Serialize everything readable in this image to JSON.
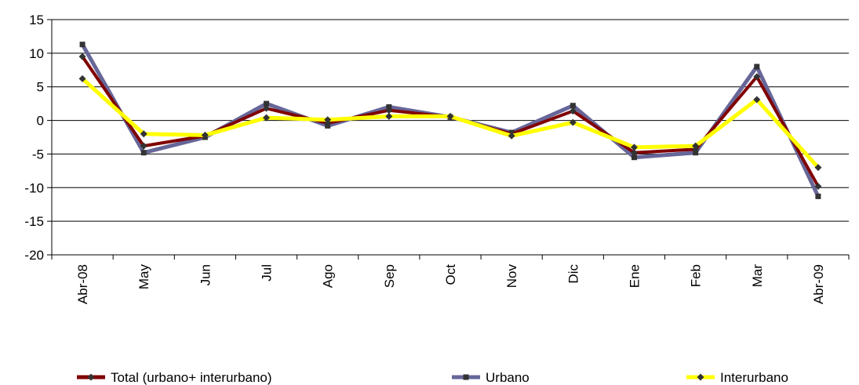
{
  "chart_data": {
    "type": "line",
    "title": "",
    "xlabel": "",
    "ylabel": "",
    "categories": [
      "Abr-08",
      "May",
      "Jun",
      "Jul",
      "Ago",
      "Sep",
      "Oct",
      "Nov",
      "Dic",
      "Ene",
      "Feb",
      "Mar",
      "Abr-09"
    ],
    "ylim": [
      -20,
      15
    ],
    "yticks": [
      15,
      10,
      5,
      0,
      -5,
      -10,
      -15,
      -20
    ],
    "grid": true,
    "legend_position": "bottom",
    "series": [
      {
        "name": "Urbano",
        "color": "#666699",
        "marker": "square",
        "values": [
          11.3,
          -4.8,
          -2.5,
          2.5,
          -0.8,
          2.0,
          0.5,
          -1.8,
          2.2,
          -5.5,
          -4.8,
          8.0,
          -11.3
        ]
      },
      {
        "name": "Total (urbano+ interurbano)",
        "color": "#800000",
        "marker": "diamond",
        "values": [
          9.5,
          -3.8,
          -2.3,
          1.8,
          -0.4,
          1.5,
          0.5,
          -2.0,
          1.4,
          -4.8,
          -4.3,
          6.5,
          -9.8
        ]
      },
      {
        "name": "Interurbano",
        "color": "#FFFF00",
        "marker": "diamond",
        "values": [
          6.2,
          -2.0,
          -2.2,
          0.4,
          0.1,
          0.6,
          0.6,
          -2.3,
          -0.3,
          -4.0,
          -3.8,
          3.1,
          -7.0
        ]
      }
    ],
    "legend": [
      {
        "name": "Total (urbano+ interurbano)",
        "color": "#800000",
        "marker": "diamond"
      },
      {
        "name": "Urbano",
        "color": "#666699",
        "marker": "square"
      },
      {
        "name": "Interurbano",
        "color": "#FFFF00",
        "marker": "diamond"
      }
    ]
  }
}
